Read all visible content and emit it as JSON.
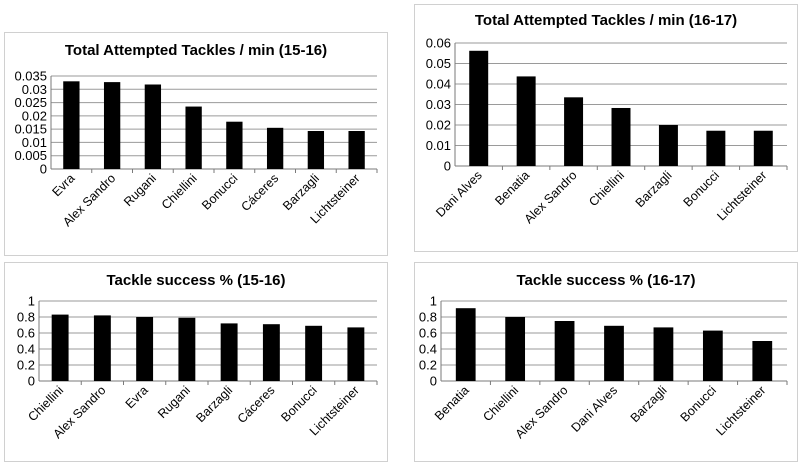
{
  "chart_data": [
    {
      "type": "bar",
      "title": "Total Attempted Tackles / min (15-16)",
      "categories": [
        "Evra",
        "Alex Sandro",
        "Rugani",
        "Chiellini",
        "Bonucci",
        "Cáceres",
        "Barzagli",
        "Lichtsteiner"
      ],
      "values": [
        0.033,
        0.0327,
        0.0318,
        0.0235,
        0.0178,
        0.0155,
        0.0143,
        0.0143
      ],
      "ylim": [
        0,
        0.035
      ],
      "yticks": [
        "0",
        "0.005",
        "0.01",
        "0.015",
        "0.02",
        "0.025",
        "0.03",
        "0.035"
      ],
      "grid": true,
      "bar_color": "#000000"
    },
    {
      "type": "bar",
      "title": "Total Attempted Tackles / min (16-17)",
      "categories": [
        "Dani Alves",
        "Benatia",
        "Alex Sandro",
        "Chiellini",
        "Barzagli",
        "Bonucci",
        "Lichtsteiner"
      ],
      "values": [
        0.0562,
        0.0437,
        0.0335,
        0.0283,
        0.02,
        0.0172,
        0.0172
      ],
      "ylim": [
        0,
        0.06
      ],
      "yticks": [
        "0",
        "0.01",
        "0.02",
        "0.03",
        "0.04",
        "0.05",
        "0.06"
      ],
      "grid": true,
      "bar_color": "#000000"
    },
    {
      "type": "bar",
      "title": "Tackle success % (15-16)",
      "categories": [
        "Chiellini",
        "Alex Sandro",
        "Evra",
        "Rugani",
        "Barzagli",
        "Cáceres",
        "Bonucci",
        "Lichtsteiner"
      ],
      "values": [
        0.83,
        0.82,
        0.8,
        0.79,
        0.72,
        0.71,
        0.69,
        0.67
      ],
      "ylim": [
        0,
        1
      ],
      "yticks": [
        "0",
        "0.2",
        "0.4",
        "0.6",
        "0.8",
        "1"
      ],
      "grid": true,
      "bar_color": "#000000"
    },
    {
      "type": "bar",
      "title": "Tackle success % (16-17)",
      "categories": [
        "Benatia",
        "Chiellini",
        "Alex Sandro",
        "Dani Alves",
        "Barzagli",
        "Bonucci",
        "Lichtsteiner"
      ],
      "values": [
        0.91,
        0.8,
        0.75,
        0.69,
        0.67,
        0.63,
        0.5
      ],
      "ylim": [
        0,
        1
      ],
      "yticks": [
        "0",
        "0.2",
        "0.4",
        "0.6",
        "0.8",
        "1"
      ],
      "grid": true,
      "bar_color": "#000000"
    }
  ]
}
